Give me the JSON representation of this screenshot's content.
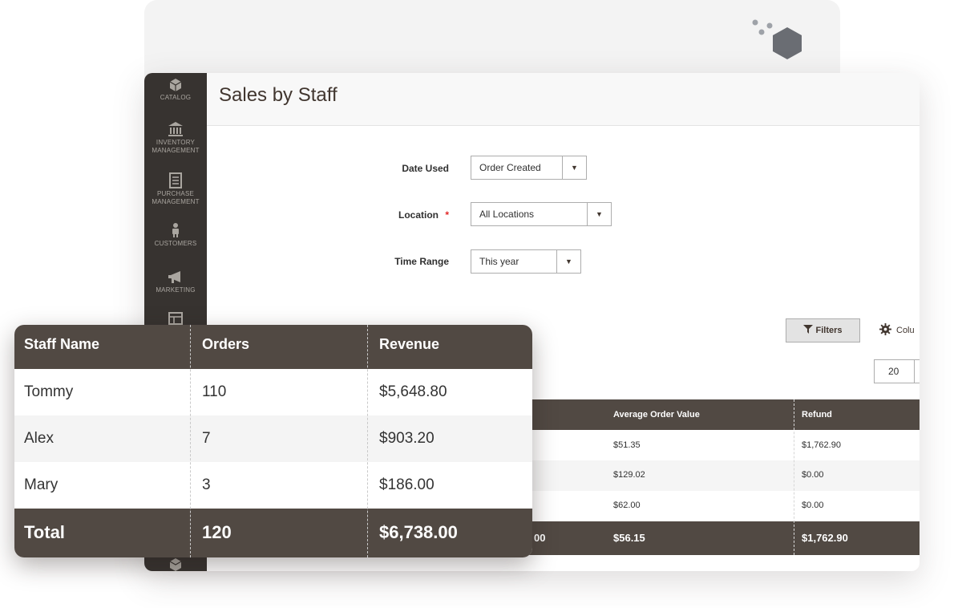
{
  "sidebar": {
    "items": [
      {
        "label": "CATALOG",
        "icon": "box-icon"
      },
      {
        "label_lines": [
          "INVENTORY",
          "MANAGEMENT"
        ],
        "icon": "bank-icon"
      },
      {
        "label_lines": [
          "PURCHASE",
          "MANAGEMENT"
        ],
        "icon": "document-icon"
      },
      {
        "label": "CUSTOMERS",
        "icon": "person-icon"
      },
      {
        "label": "MARKETING",
        "icon": "megaphone-icon"
      },
      {
        "label": "",
        "icon": "layout-icon"
      }
    ]
  },
  "page": {
    "title": "Sales by Staff"
  },
  "form": {
    "date_used": {
      "label": "Date Used",
      "value": "Order Created"
    },
    "location": {
      "label": "Location",
      "required_mark": "*",
      "value": "All Locations"
    },
    "time_range": {
      "label": "Time Range",
      "value": "This year"
    }
  },
  "toolbar": {
    "filters_label": "Filters",
    "columns_label": "Colu",
    "per_page": "20"
  },
  "grid": {
    "columns": [
      "Average Order Value",
      "Refund"
    ],
    "rows": [
      [
        "$51.35",
        "$1,762.90"
      ],
      [
        "$129.02",
        "$0.00"
      ],
      [
        "$62.00",
        "$0.00"
      ]
    ],
    "total_partial": "00",
    "totals": [
      "$56.15",
      "$1,762.90"
    ]
  },
  "overlay_table": {
    "columns": [
      "Staff Name",
      "Orders",
      "Revenue"
    ],
    "rows": [
      [
        "Tommy",
        "110",
        "$5,648.80"
      ],
      [
        "Alex",
        "7",
        "$903.20"
      ],
      [
        "Mary",
        "3",
        "$186.00"
      ]
    ],
    "totals": [
      "Total",
      "120",
      "$6,738.00"
    ]
  },
  "colors": {
    "sidebar_bg": "#373330",
    "table_header_bg": "#514943",
    "required": "#e22626"
  }
}
